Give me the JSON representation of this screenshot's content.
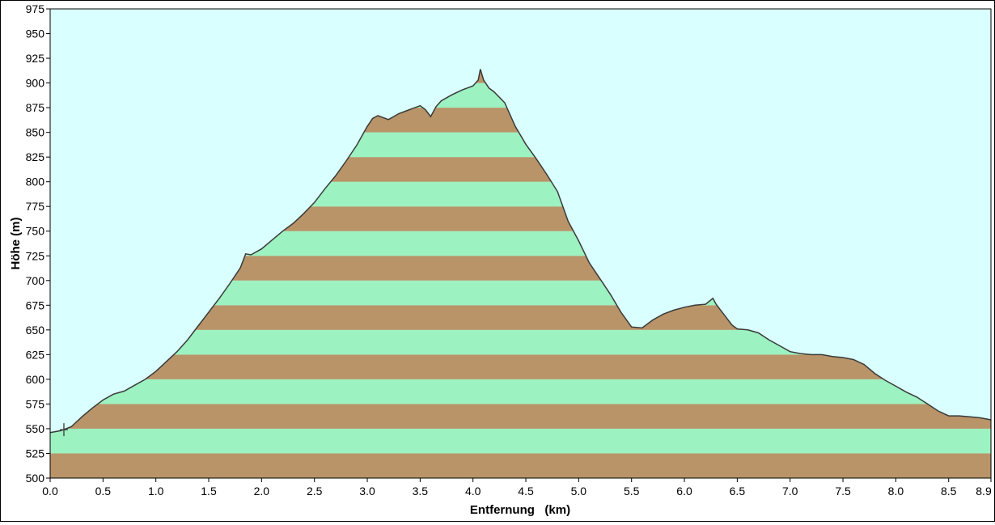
{
  "chart_data": {
    "type": "area",
    "title": "",
    "xlabel": "Entfernung   (km)",
    "ylabel": "Höhe (m)",
    "xlim": [
      0.0,
      8.9
    ],
    "ylim": [
      500,
      975
    ],
    "x_ticks": [
      0.0,
      0.5,
      1.0,
      1.5,
      2.0,
      2.5,
      3.0,
      3.5,
      4.0,
      4.5,
      5.0,
      5.5,
      6.0,
      6.5,
      7.0,
      7.5,
      8.0,
      8.5,
      8.9
    ],
    "x_tick_labels": [
      "0.0",
      "0.5",
      "1.0",
      "1.5",
      "2.0",
      "2.5",
      "3.0",
      "3.5",
      "4.0",
      "4.5",
      "5.0",
      "5.5",
      "6.0",
      "6.5",
      "7.0",
      "7.5",
      "8.0",
      "8.5",
      "8.9"
    ],
    "y_ticks": [
      500,
      525,
      550,
      575,
      600,
      625,
      650,
      675,
      700,
      725,
      750,
      775,
      800,
      825,
      850,
      875,
      900,
      925,
      950,
      975
    ],
    "y_tick_labels": [
      "500",
      "525",
      "550",
      "575",
      "600",
      "625",
      "650",
      "675",
      "700",
      "725",
      "750",
      "775",
      "800",
      "825",
      "850",
      "875",
      "900",
      "925",
      "950",
      "975"
    ],
    "band_step": 25,
    "colors": {
      "sky": "#d9ffff",
      "band_brown": "#b89468",
      "band_green": "#9cf2c0",
      "line": "#3a3a3a",
      "axis": "#000000"
    },
    "series": [
      {
        "x": [
          0.0,
          0.1,
          0.2,
          0.3,
          0.4,
          0.5,
          0.6,
          0.7,
          0.8,
          0.9,
          1.0,
          1.1,
          1.2,
          1.3,
          1.4,
          1.5,
          1.6,
          1.7,
          1.8,
          1.85,
          1.9,
          2.0,
          2.1,
          2.2,
          2.3,
          2.4,
          2.5,
          2.6,
          2.7,
          2.8,
          2.9,
          3.0,
          3.05,
          3.1,
          3.2,
          3.3,
          3.4,
          3.5,
          3.55,
          3.6,
          3.65,
          3.7,
          3.8,
          3.9,
          4.0,
          4.05,
          4.07,
          4.1,
          4.15,
          4.2,
          4.3,
          4.4,
          4.5,
          4.6,
          4.7,
          4.8,
          4.9,
          5.0,
          5.1,
          5.2,
          5.3,
          5.4,
          5.5,
          5.6,
          5.7,
          5.8,
          5.9,
          6.0,
          6.1,
          6.2,
          6.27,
          6.3,
          6.4,
          6.45,
          6.5,
          6.6,
          6.7,
          6.8,
          6.9,
          7.0,
          7.1,
          7.2,
          7.3,
          7.4,
          7.5,
          7.6,
          7.7,
          7.8,
          7.9,
          8.0,
          8.1,
          8.2,
          8.3,
          8.4,
          8.5,
          8.6,
          8.7,
          8.8,
          8.9
        ],
        "y": [
          546,
          548,
          552,
          562,
          571,
          579,
          585,
          588,
          594,
          600,
          608,
          618,
          628,
          640,
          654,
          668,
          682,
          697,
          713,
          727,
          726,
          732,
          741,
          750,
          758,
          768,
          779,
          793,
          806,
          821,
          837,
          856,
          864,
          867,
          863,
          869,
          873,
          877,
          873,
          866,
          876,
          882,
          888,
          893,
          897,
          903,
          914,
          903,
          895,
          891,
          880,
          856,
          838,
          823,
          807,
          790,
          760,
          740,
          718,
          702,
          686,
          668,
          653,
          652,
          660,
          666,
          670,
          673,
          675,
          676,
          682,
          676,
          662,
          655,
          651,
          650,
          647,
          640,
          634,
          628,
          626,
          625,
          625,
          623,
          622,
          620,
          615,
          606,
          599,
          593,
          587,
          582,
          575,
          568,
          563,
          563,
          562,
          561,
          559
        ]
      }
    ]
  }
}
